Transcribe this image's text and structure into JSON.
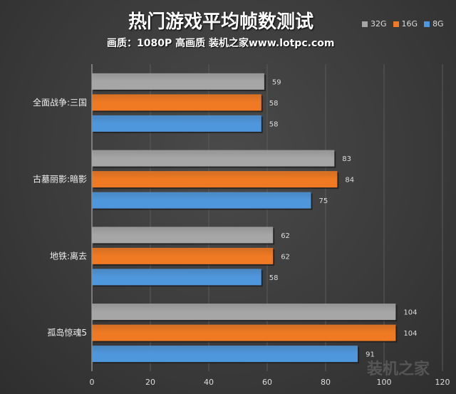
{
  "chart_data": {
    "type": "bar",
    "orientation": "horizontal",
    "title": "热门游戏平均帧数测试",
    "subtitle": "画质：1080P 高画质 装机之家www.lotpc.com",
    "categories": [
      "全面战争:三国",
      "古墓丽影:暗影",
      "地铁:离去",
      "孤岛惊魂5"
    ],
    "series": [
      {
        "name": "32G",
        "color": "#a6a6a6",
        "values": [
          59,
          83,
          62,
          104
        ]
      },
      {
        "name": "16G",
        "color": "#f07a23",
        "values": [
          58,
          84,
          62,
          104
        ]
      },
      {
        "name": "8G",
        "color": "#4f97dc",
        "values": [
          58,
          75,
          58,
          91
        ]
      }
    ],
    "xlim": [
      0,
      120
    ],
    "xticks": [
      0,
      20,
      40,
      60,
      80,
      100,
      120
    ],
    "grid": true,
    "legend": "top-right",
    "data_labels": true
  },
  "watermark": "装机之家"
}
